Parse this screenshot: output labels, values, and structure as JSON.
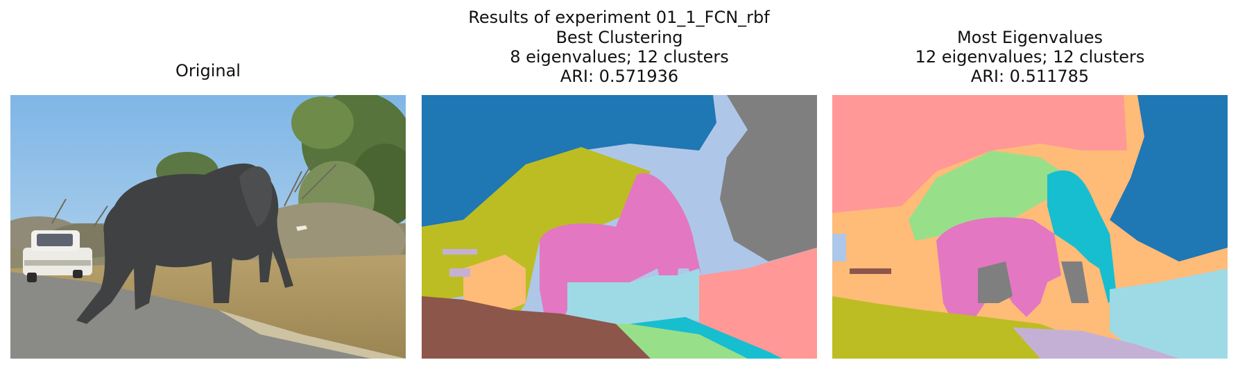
{
  "figure": {
    "suptitle": "Results of experiment 01_1_FCN_rbf"
  },
  "panels": [
    {
      "title_lines": [
        "Original"
      ],
      "image": "photo-elephant-crossing-road"
    },
    {
      "title_lines": [
        "Best Clustering",
        "8 eigenvalues; 12 clusters",
        "ARI: 0.571936"
      ],
      "image": "cluster-map-best"
    },
    {
      "title_lines": [
        "Most Eigenvalues",
        "12 eigenvalues; 12 clusters",
        "ARI: 0.511785"
      ],
      "image": "cluster-map-most"
    }
  ],
  "colors": {
    "tab_blue": "#1f77b4",
    "tab_brown": "#8c564b",
    "tab_pink": "#e377c2",
    "tab_gray": "#7f7f7f",
    "tab_olive": "#bcbd22",
    "tab_cyan": "#17becf",
    "light_blue": "#aec7e8",
    "light_salmon": "#ff9896",
    "light_green": "#98df8a",
    "light_orange": "#ffbb78",
    "light_purple": "#c5b0d5",
    "light_cyan": "#9edae5"
  }
}
